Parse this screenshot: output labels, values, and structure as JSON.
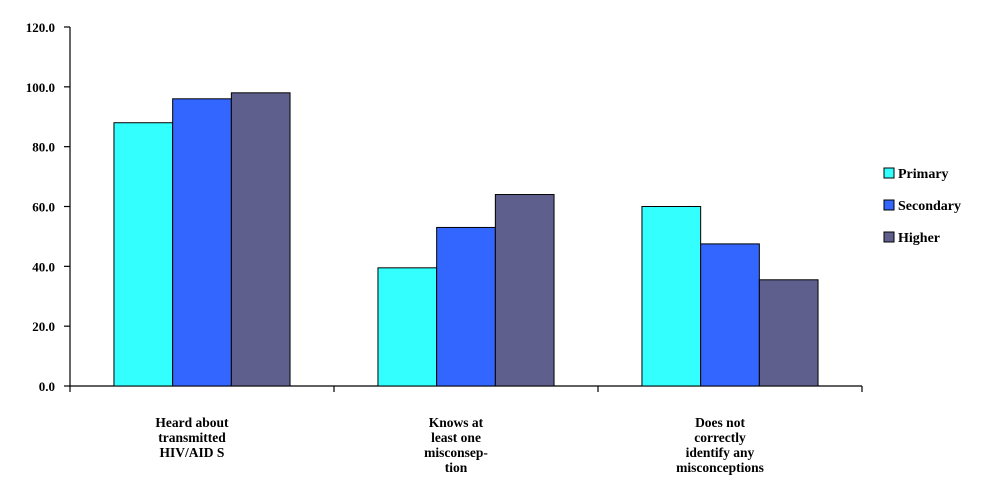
{
  "chart_data": {
    "type": "bar",
    "categories": [
      "Heard about transmitted HIV/AID S",
      "Knows at least one misconsep- tion",
      "Does not correctly identify any misconceptions"
    ],
    "category_lines": [
      [
        "Heard  about",
        "transmitted",
        "HIV/AID S"
      ],
      [
        "Knows at",
        "least one",
        "misconsep-",
        "tion"
      ],
      [
        "Does not",
        "correctly",
        "identify any",
        "misconceptions"
      ]
    ],
    "series": [
      {
        "name": "Primary",
        "color": "#33ffff",
        "values": [
          88.0,
          39.5,
          60.0
        ]
      },
      {
        "name": "Secondary",
        "color": "#3366ff",
        "values": [
          96.0,
          53.0,
          47.5
        ]
      },
      {
        "name": "Higher",
        "color": "#5f5f8e",
        "values": [
          98.0,
          64.0,
          35.5
        ]
      }
    ],
    "y_ticks": [
      "0.0",
      "20.0",
      "40.0",
      "60.0",
      "80.0",
      "100.0",
      "120.0"
    ],
    "ylim": [
      0,
      120
    ],
    "title": "",
    "xlabel": "",
    "ylabel": "",
    "grid": false,
    "legend_position": "right"
  }
}
